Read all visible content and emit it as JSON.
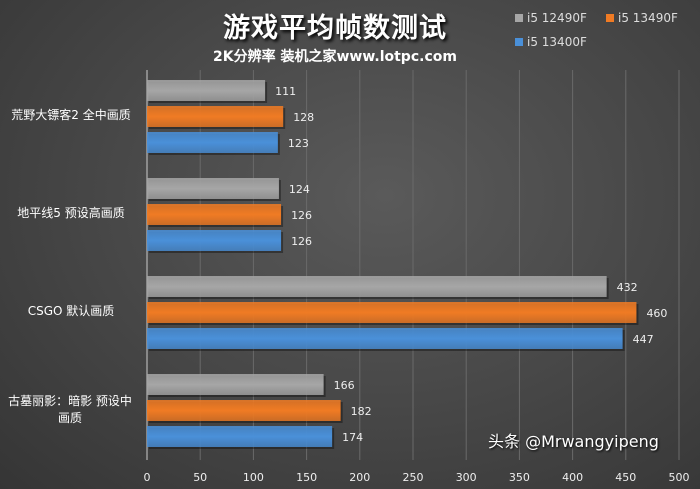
{
  "chart_data": {
    "type": "bar",
    "orientation": "horizontal",
    "title": "游戏平均帧数测试",
    "subtitle": "2K分辨率  装机之家www.lotpc.com",
    "categories": [
      "荒野大镖客2 全中画质",
      "地平线5 预设高画质",
      "CSGO 默认画质",
      "古墓丽影：暗影 预设中画质"
    ],
    "series": [
      {
        "name": "i5 12490F",
        "color": "#a6a6a6",
        "values": [
          111,
          124,
          432,
          166
        ]
      },
      {
        "name": "i5 13490F",
        "color": "#f07b24",
        "values": [
          128,
          126,
          460,
          182
        ]
      },
      {
        "name": "i5 13400F",
        "color": "#4a90d9",
        "values": [
          123,
          126,
          447,
          174
        ]
      }
    ],
    "xlim": [
      0,
      500
    ],
    "xticks": [
      0,
      50,
      100,
      150,
      200,
      250,
      300,
      350,
      400,
      450,
      500
    ],
    "grid": true,
    "legend": "top-right"
  },
  "watermark": "头条 @Mrwangyipeng"
}
